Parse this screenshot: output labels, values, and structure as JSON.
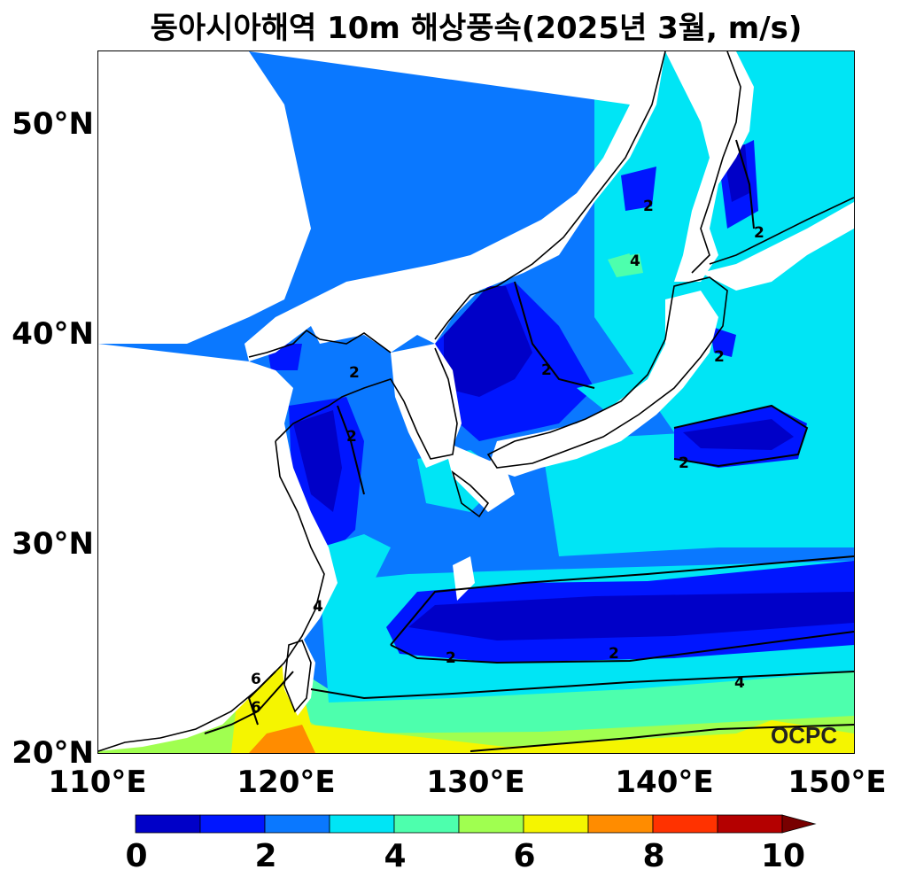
{
  "title": "동아시아해역 10m 해상풍속(2025년 3월, m/s)",
  "credit": "OCPC",
  "lat_labels": [
    "50°N",
    "40°N",
    "30°N",
    "20°N"
  ],
  "lon_labels": [
    "110°E",
    "120°E",
    "130°E",
    "140°E",
    "150°E"
  ],
  "colorbar": {
    "labels": [
      "0",
      "2",
      "4",
      "6",
      "8",
      "10"
    ],
    "colors": [
      "#0000c8",
      "#0016ff",
      "#0a78ff",
      "#00e5f5",
      "#4dffad",
      "#a0ff50",
      "#f5f500",
      "#ff8c00",
      "#ff3200",
      "#b40000",
      "#780000"
    ]
  },
  "contour_labels": [
    "2",
    "2",
    "2",
    "2",
    "2",
    "2",
    "2",
    "2",
    "2",
    "4",
    "4",
    "4",
    "6",
    "6"
  ]
}
